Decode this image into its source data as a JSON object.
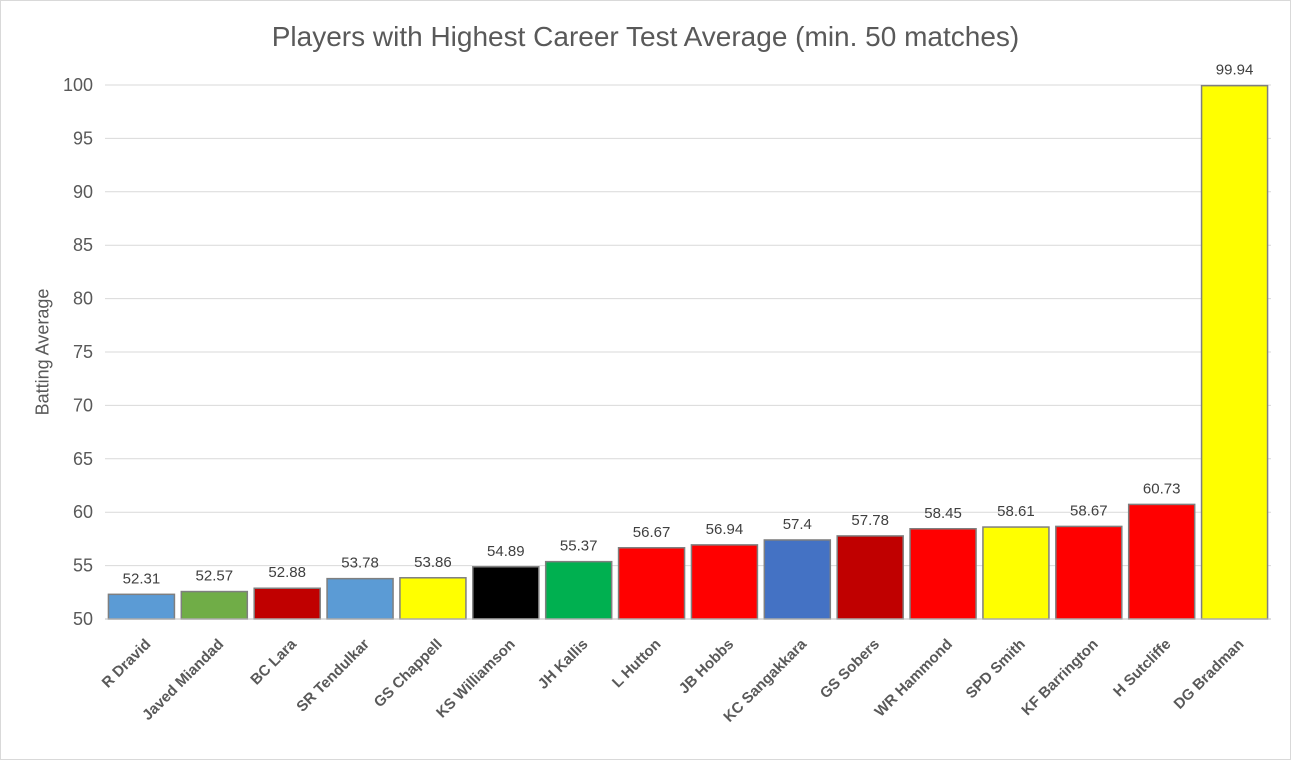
{
  "chart_data": {
    "type": "bar",
    "title": "Players with Highest Career Test Average (min. 50 matches)",
    "xlabel": "",
    "ylabel": "Batting Average",
    "ylim": [
      50,
      100
    ],
    "yticks": [
      50,
      55,
      60,
      65,
      70,
      75,
      80,
      85,
      90,
      95,
      100
    ],
    "grid": true,
    "legend": "none",
    "categories": [
      "R Dravid",
      "Javed Miandad",
      "BC Lara",
      "SR Tendulkar",
      "GS Chappell",
      "KS Williamson",
      "JH Kallis",
      "L Hutton",
      "JB Hobbs",
      "KC Sangakkara",
      "GS Sobers",
      "WR Hammond",
      "SPD Smith",
      "KF Barrington",
      "H Sutcliffe",
      "DG Bradman"
    ],
    "values": [
      52.31,
      52.57,
      52.88,
      53.78,
      53.86,
      54.89,
      55.37,
      56.67,
      56.94,
      57.4,
      57.78,
      58.45,
      58.61,
      58.67,
      60.73,
      99.94
    ],
    "data_labels": [
      "52.31",
      "52.57",
      "52.88",
      "53.78",
      "53.86",
      "54.89",
      "55.37",
      "56.67",
      "56.94",
      "57.4",
      "57.78",
      "58.45",
      "58.61",
      "58.67",
      "60.73",
      "99.94"
    ],
    "colors": [
      "#5b9bd5",
      "#70ad47",
      "#c00000",
      "#5b9bd5",
      "#ffff00",
      "#000000",
      "#00b050",
      "#ff0000",
      "#ff0000",
      "#4472c4",
      "#c00000",
      "#ff0000",
      "#ffff00",
      "#ff0000",
      "#ff0000",
      "#ffff00"
    ],
    "bar_outline_color": "#7f7f7f",
    "gridline_color": "#d9d9d9",
    "axis_color": "#bfbfbf"
  }
}
